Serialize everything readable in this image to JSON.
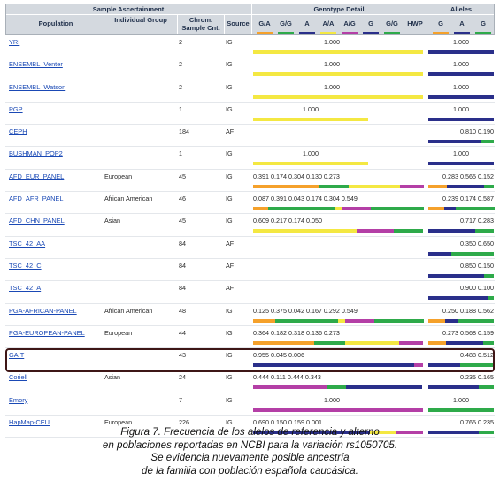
{
  "header": {
    "sample_ascertainment": "Sample Ascertainment",
    "genotype_detail": "Genotype Detail",
    "alleles": "Alleles",
    "population": "Population",
    "individual_group": "Individual Group",
    "chrom_sample_cnt": "Chrom. Sample Cnt.",
    "source": "Source",
    "genotype_cols": [
      "G/A",
      "G/G",
      "A",
      "A/A",
      "A/G",
      "G",
      "G/G",
      "HWP"
    ],
    "allele_cols": [
      "G",
      "A",
      "G"
    ]
  },
  "colors": {
    "orange": "#f5a12b",
    "green": "#2eaa4a",
    "navy": "#2a2f8a",
    "yellow": "#f4e842",
    "purple": "#b43fa6"
  },
  "rows": [
    {
      "population": "YRI",
      "group": "",
      "cnt": "2",
      "source": "IG",
      "geno": "1.000",
      "alleles": "1.000"
    },
    {
      "population": "ENSEMBL_Venter",
      "group": "",
      "cnt": "2",
      "source": "IG",
      "geno": "1.000",
      "alleles": "1.000"
    },
    {
      "population": "ENSEMBL_Watson",
      "group": "",
      "cnt": "2",
      "source": "IG",
      "geno": "1.000",
      "alleles": "1.000"
    },
    {
      "population": "PGP",
      "group": "",
      "cnt": "1",
      "source": "IG",
      "geno": "1.000",
      "alleles": "1.000"
    },
    {
      "population": "CEPH",
      "group": "",
      "cnt": "184",
      "source": "AF",
      "geno": "",
      "alleles": "0.810 0.190"
    },
    {
      "population": "BUSHMAN_POP2",
      "group": "",
      "cnt": "1",
      "source": "IG",
      "geno": "1.000",
      "alleles": "1.000"
    },
    {
      "population": "AFD_EUR_PANEL",
      "group": "European",
      "cnt": "45",
      "source": "IG",
      "geno": "0.391 0.174     0.304 0.130     0.273",
      "alleles": "0.283 0.565 0.152"
    },
    {
      "population": "AFD_AFR_PANEL",
      "group": "African American",
      "cnt": "46",
      "source": "IG",
      "geno": "0.087 0.391     0.043 0.174     0.304 0.549",
      "alleles": "0.239 0.174 0.587"
    },
    {
      "population": "AFD_CHN_PANEL",
      "group": "Asian",
      "cnt": "45",
      "source": "IG",
      "geno": "0.609 0.217     0.174 0.050",
      "alleles": "0.717 0.283"
    },
    {
      "population": "TSC_42_AA",
      "group": "",
      "cnt": "84",
      "source": "AF",
      "geno": "",
      "alleles": "0.350 0.650"
    },
    {
      "population": "TSC_42_C",
      "group": "",
      "cnt": "84",
      "source": "AF",
      "geno": "",
      "alleles": "0.850 0.150"
    },
    {
      "population": "TSC_42_A",
      "group": "",
      "cnt": "84",
      "source": "AF",
      "geno": "",
      "alleles": "0.900 0.100"
    },
    {
      "population": "PGA-AFRICAN-PANEL",
      "group": "African American",
      "cnt": "48",
      "source": "IG",
      "geno": "0.125 0.375     0.042 0.167     0.292 0.549",
      "alleles": "0.250 0.188 0.562"
    },
    {
      "population": "PGA-EUROPEAN-PANEL",
      "group": "European",
      "cnt": "44",
      "source": "IG",
      "geno": "0.364 0.182     0.318 0.136     0.273",
      "alleles": "0.273 0.568 0.159"
    },
    {
      "population": "GAIT",
      "group": "",
      "cnt": "43",
      "source": "IG",
      "geno": "0.955 0.045     0.006",
      "alleles": "0.488 0.512"
    },
    {
      "population": "Coriell",
      "group": "Asian",
      "cnt": "24",
      "source": "IG",
      "geno": "0.444 0.111 0.444 0.343",
      "alleles": "0.235 0.165"
    },
    {
      "population": "Emory",
      "group": "",
      "cnt": "7",
      "source": "IG",
      "geno": "1.000",
      "alleles": "1.000"
    },
    {
      "population": "HapMap-CEU",
      "group": "European",
      "cnt": "226",
      "source": "IG",
      "geno": "0.690 0.150     0.159 0.001",
      "alleles": "0.765 0.235"
    }
  ],
  "caption": {
    "line1": "Figura 7. Frecuencia de los alelos de referencia y alterno",
    "line2": "en poblaciones reportadas  en NCBI para la variación rs1050705.",
    "line3": "Se evidencia nuevamente posible ancestría",
    "line4": "de la familia con población española caucásica."
  }
}
